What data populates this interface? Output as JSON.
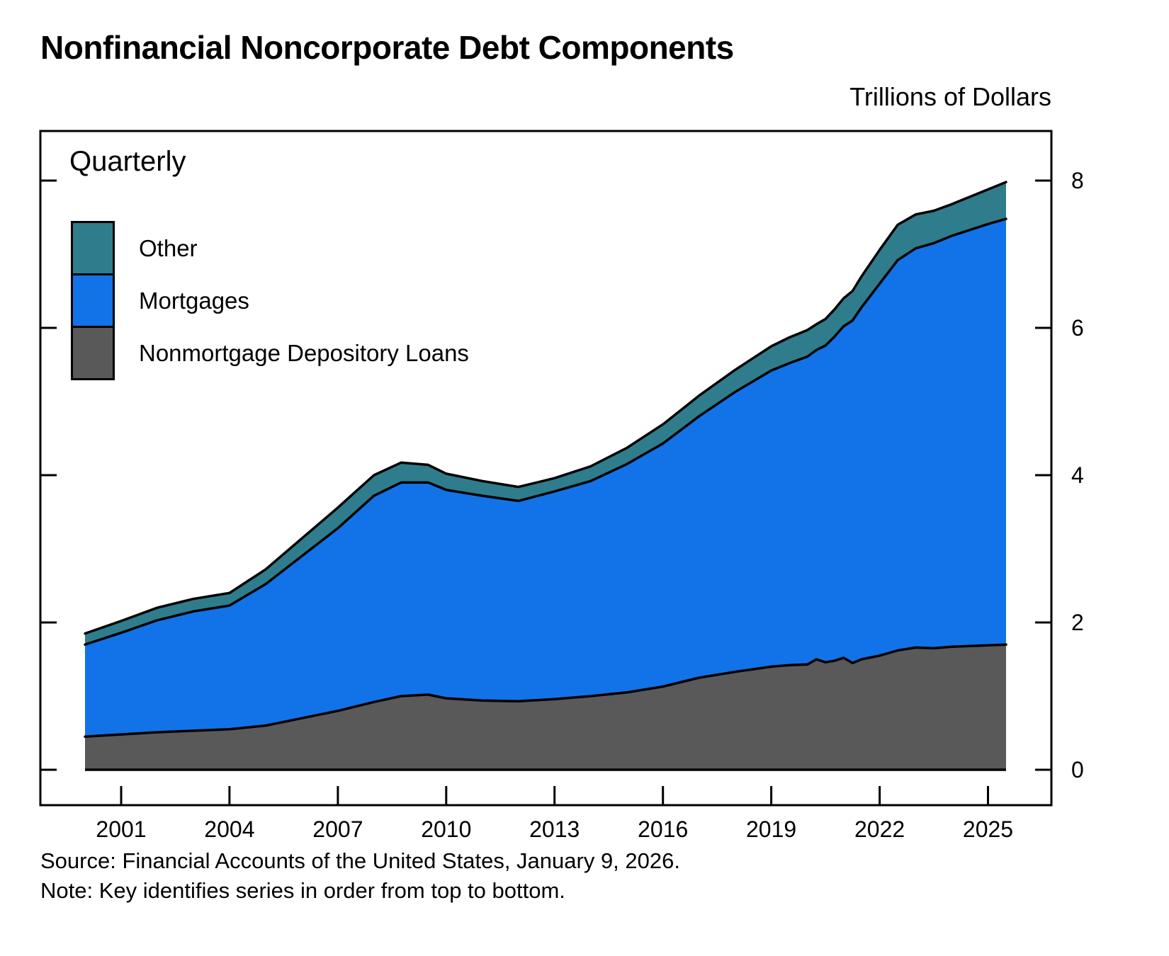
{
  "chart_data": {
    "type": "area",
    "stacked": true,
    "title": "Nonfinancial Noncorporate Debt Components",
    "unit_label": "Trillions of Dollars",
    "frequency_label": "Quarterly",
    "grid": false,
    "legend_position": "top-left",
    "ylim": [
      0,
      8.6
    ],
    "y_ticks": [
      0,
      2,
      4,
      6,
      8
    ],
    "x_ticks": [
      2001,
      2004,
      2007,
      2010,
      2013,
      2016,
      2019,
      2022,
      2025
    ],
    "x_range": [
      2000,
      2025.5
    ],
    "x": [
      2000,
      2001,
      2002,
      2003,
      2004,
      2005,
      2006,
      2007,
      2008,
      2008.75,
      2009.5,
      2010,
      2011,
      2012,
      2013,
      2014,
      2015,
      2016,
      2017,
      2018,
      2019,
      2019.5,
      2020,
      2020.25,
      2020.5,
      2020.75,
      2021,
      2021.25,
      2021.5,
      2022,
      2022.5,
      2023,
      2023.5,
      2024,
      2024.5,
      2025,
      2025.5
    ],
    "series": [
      {
        "name": "Nonmortgage Depository Loans",
        "color": "#595959",
        "values": [
          0.45,
          0.48,
          0.51,
          0.53,
          0.55,
          0.6,
          0.7,
          0.8,
          0.92,
          1.0,
          1.02,
          0.97,
          0.94,
          0.93,
          0.96,
          1.0,
          1.05,
          1.13,
          1.25,
          1.33,
          1.4,
          1.42,
          1.43,
          1.5,
          1.46,
          1.48,
          1.52,
          1.45,
          1.5,
          1.55,
          1.62,
          1.66,
          1.65,
          1.67,
          1.68,
          1.69,
          1.7
        ]
      },
      {
        "name": "Mortgages",
        "color": "#1273E8",
        "values": [
          1.25,
          1.38,
          1.52,
          1.62,
          1.68,
          1.92,
          2.2,
          2.48,
          2.8,
          2.9,
          2.88,
          2.83,
          2.78,
          2.72,
          2.82,
          2.92,
          3.1,
          3.3,
          3.55,
          3.8,
          4.02,
          4.1,
          4.18,
          4.2,
          4.3,
          4.4,
          4.5,
          4.65,
          4.78,
          5.05,
          5.3,
          5.42,
          5.5,
          5.58,
          5.65,
          5.72,
          5.78
        ]
      },
      {
        "name": "Other",
        "color": "#2F7D8C",
        "values": [
          0.15,
          0.16,
          0.17,
          0.17,
          0.17,
          0.2,
          0.24,
          0.28,
          0.28,
          0.27,
          0.24,
          0.22,
          0.2,
          0.19,
          0.18,
          0.2,
          0.22,
          0.26,
          0.28,
          0.3,
          0.33,
          0.35,
          0.36,
          0.35,
          0.36,
          0.37,
          0.38,
          0.4,
          0.42,
          0.46,
          0.48,
          0.46,
          0.44,
          0.43,
          0.45,
          0.47,
          0.5
        ]
      }
    ],
    "stack_order_note": "first series is bottom of stack"
  },
  "legend": {
    "items": [
      {
        "label": "Other",
        "color": "#2F7D8C"
      },
      {
        "label": "Mortgages",
        "color": "#1273E8"
      },
      {
        "label": "Nonmortgage Depository Loans",
        "color": "#595959"
      }
    ]
  },
  "source_note": {
    "source": "Source: Financial Accounts of the United States, January 9, 2026.",
    "note": "Note: Key identifies series in order from top to bottom."
  }
}
